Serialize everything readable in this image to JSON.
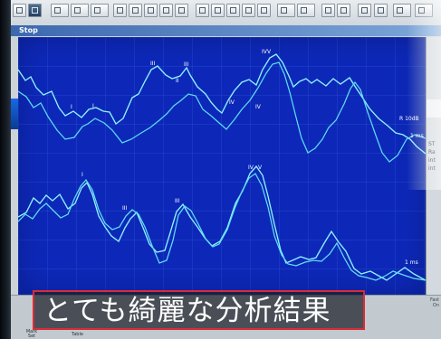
{
  "window": {
    "title": "Stop"
  },
  "toolbar": {
    "icons": [
      "open-file-icon",
      "save-icon",
      "print-icon",
      "print-preview-icon",
      "setup-icon",
      "marker-icon",
      "cursor-icon",
      "zoom-icon",
      "filter-icon",
      "measure-icon",
      "channel-icon",
      "overlay-icon",
      "stack-icon",
      "scale-icon",
      "view-icon",
      "marker-icon",
      "average-icon",
      "peak-icon",
      "wave-icon",
      "table-icon",
      "grid-icon",
      "graph-icon",
      "compare-icon"
    ]
  },
  "plot": {
    "background_color": "#0d28b8",
    "grid_color": "#3f69ff",
    "trace_colors": [
      "#8ff0ff",
      "#63ddf2"
    ],
    "top_markers": [
      "III",
      "III",
      "II",
      "IV",
      "IV",
      "I",
      "I",
      "IV",
      "V"
    ],
    "bottom_markers": [
      "I",
      "III",
      "III",
      "IV",
      "V"
    ],
    "labels": {
      "trace_label_1": "R 10dB",
      "trace_label_2": "1 ms",
      "trace_label_3": "1 ms"
    }
  },
  "right_panel": {
    "fragments": [
      "ST",
      "Ra",
      "int",
      "int"
    ]
  },
  "bottom_panel": {
    "mark_label": "Mark\nSet",
    "table_label": "Table",
    "fast_label": "Fast\nOn"
  },
  "overlay": {
    "subtitle": "とても綺麗な分析結果"
  }
}
